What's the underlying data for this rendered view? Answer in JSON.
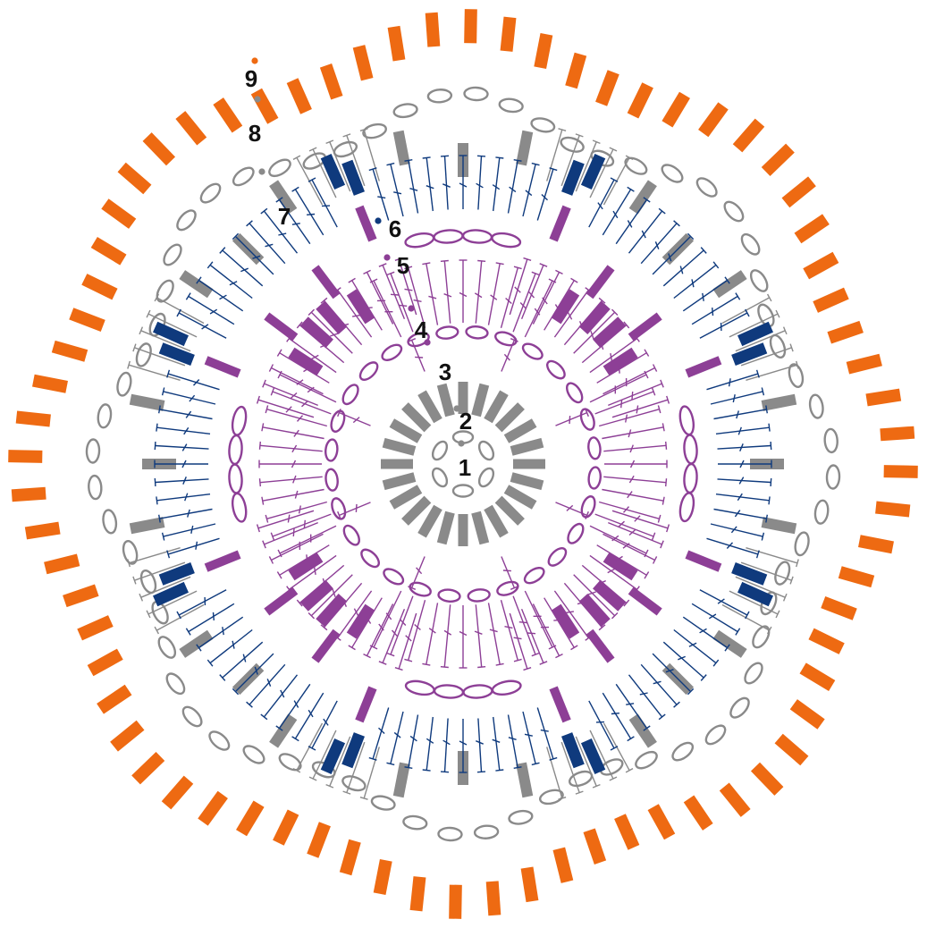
{
  "colors": {
    "grey": "#8a8a8a",
    "purple": "#8d3f96",
    "navy": "#0f3a7d",
    "orange": "#ee6a12",
    "label": "#111111"
  },
  "rounds": [
    {
      "label": "1",
      "color": "#8a8a8a"
    },
    {
      "label": "2",
      "color": "#8a8a8a"
    },
    {
      "label": "3",
      "color": "#8d3f96"
    },
    {
      "label": "4",
      "color": "#8d3f96"
    },
    {
      "label": "5",
      "color": "#8d3f96"
    },
    {
      "label": "6",
      "color": "#0f3a7d"
    },
    {
      "label": "7",
      "color": "#8a8a8a"
    },
    {
      "label": "8",
      "color": "#8a8a8a"
    },
    {
      "label": "9",
      "color": "#ee6a12"
    }
  ]
}
